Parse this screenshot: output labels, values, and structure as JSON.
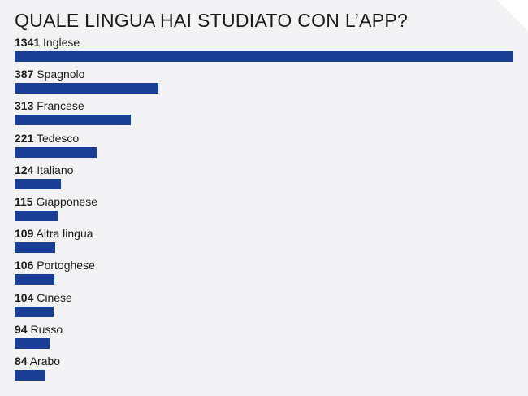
{
  "title": "QUALE LINGUA HAI STUDIATO CON L’APP?",
  "colors": {
    "bar": "#1a3d96",
    "background": "#f3f3f5"
  },
  "chart_data": {
    "type": "bar",
    "orientation": "horizontal",
    "title": "QUALE LINGUA HAI STUDIATO CON L’APP?",
    "categories": [
      "Inglese",
      "Spagnolo",
      "Francese",
      "Tedesco",
      "Italiano",
      "Giapponese",
      "Altra lingua",
      "Portoghese",
      "Cinese",
      "Russo",
      "Arabo"
    ],
    "values": [
      1341,
      387,
      313,
      221,
      124,
      115,
      109,
      106,
      104,
      94,
      84
    ],
    "xlim": [
      0,
      1341
    ],
    "grid": false
  }
}
